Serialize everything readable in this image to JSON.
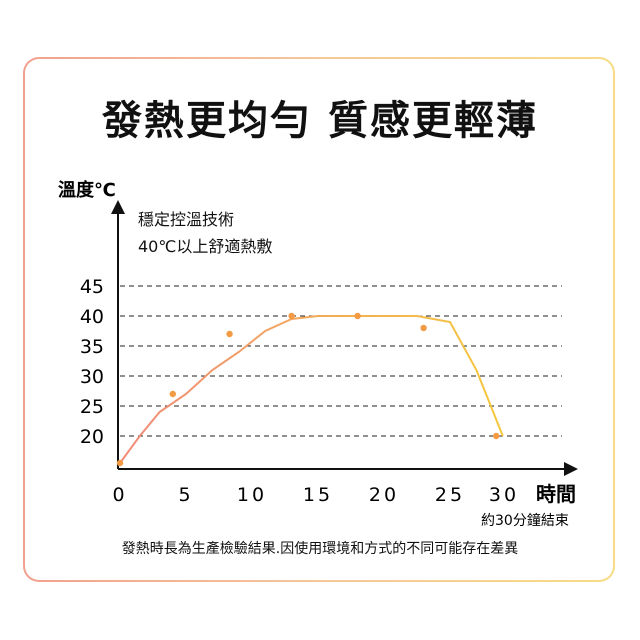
{
  "headline": "發熱更均勻 質感更輕薄",
  "annotations": {
    "line1": "穩定控溫技術",
    "line2": "40℃以上舒適熱敷"
  },
  "footnote": "發熱時長為生產檢驗結果.因使用環境和方式的不同可能存在差異",
  "colors": {
    "line_start": "#f08a7a",
    "line_end": "#f5c83c",
    "marker": "#f39a45",
    "axis": "#111111",
    "grid": "#222222"
  },
  "chart_data": {
    "type": "line",
    "title": "",
    "ylabel": "溫度℃",
    "xlabel": "時間",
    "xlabel_note": "約30分鐘結束",
    "x_ticks": [
      0,
      5,
      10,
      15,
      20,
      25,
      30
    ],
    "y_ticks": [
      20,
      25,
      30,
      35,
      40,
      45
    ],
    "grid": "horizontal dashed",
    "series": [
      {
        "x": [
          0,
          1.5,
          3,
          5,
          7,
          9,
          11,
          13,
          15,
          17,
          20,
          22.5,
          25,
          27,
          29
        ],
        "y": [
          15.5,
          20,
          24,
          27,
          31,
          34,
          37.5,
          39.5,
          40,
          40,
          40,
          40,
          39,
          31,
          20
        ]
      }
    ],
    "markers": [
      {
        "x": 0,
        "y": 15.5
      },
      {
        "x": 4,
        "y": 27
      },
      {
        "x": 8.3,
        "y": 37
      },
      {
        "x": 13,
        "y": 40
      },
      {
        "x": 18,
        "y": 40
      },
      {
        "x": 23,
        "y": 38
      },
      {
        "x": 28.5,
        "y": 20
      }
    ]
  }
}
